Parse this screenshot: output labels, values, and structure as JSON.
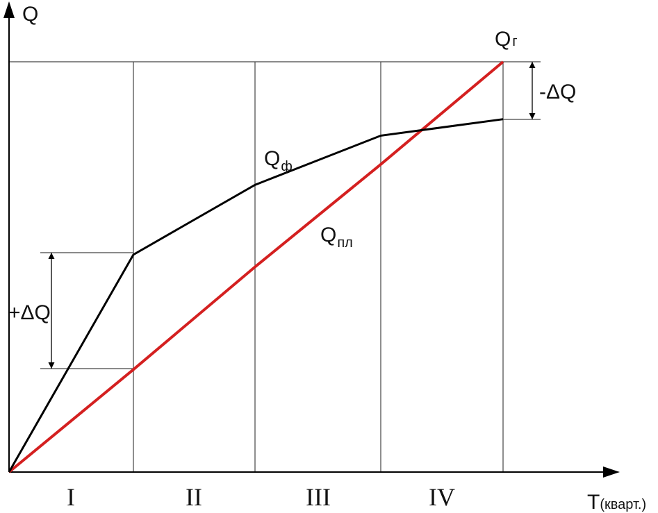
{
  "axes": {
    "y_label": "Q",
    "x_label_main": "T",
    "x_label_sub": "(кварт.)"
  },
  "quarters": [
    "I",
    "II",
    "III",
    "IV"
  ],
  "labels": {
    "q_goal_main": "Q",
    "q_goal_sub": "г",
    "q_fact_main": "Q",
    "q_fact_sub": "ф",
    "q_plan_main": "Q",
    "q_plan_sub": "пл",
    "delta_minus": "-ΔQ",
    "delta_plus": "+ΔQ"
  },
  "colors": {
    "plan_line": "#d42020",
    "fact_line": "#000000"
  },
  "chart_data": {
    "type": "line",
    "x": [
      0,
      1,
      2,
      3,
      4
    ],
    "series": [
      {
        "name": "Qф",
        "values": [
          0,
          0.53,
          0.7,
          0.82,
          0.86
        ]
      },
      {
        "name": "Qпл",
        "values": [
          0,
          0.25,
          0.5,
          0.75,
          1.0
        ]
      }
    ],
    "xlabel": "T(кварт.)",
    "ylabel": "Q",
    "categories": [
      "I",
      "II",
      "III",
      "IV"
    ]
  }
}
